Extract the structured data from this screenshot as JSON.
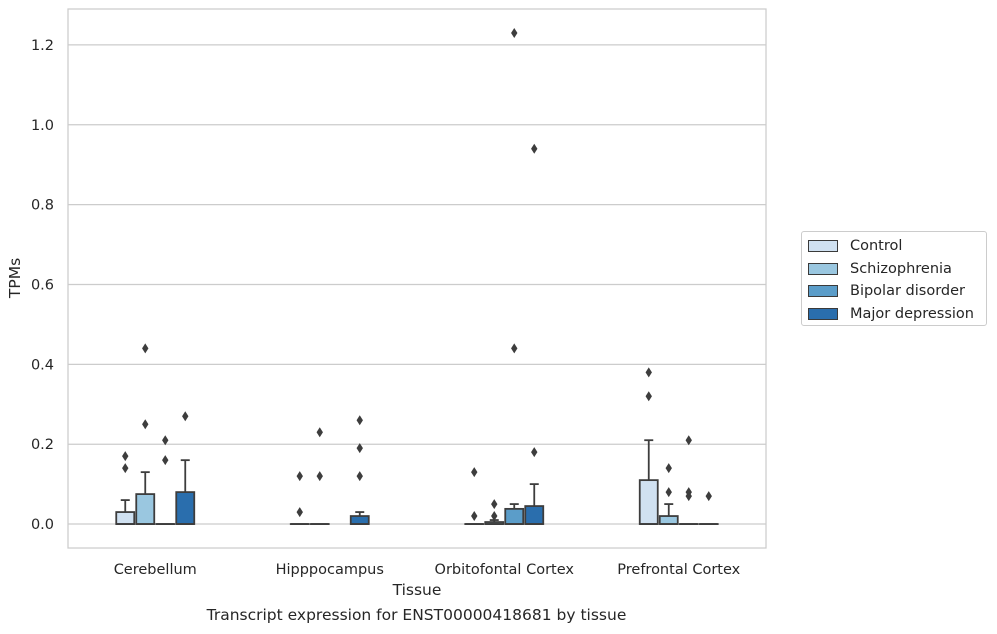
{
  "chart_data": {
    "type": "box",
    "xlabel": "Tissue",
    "ylabel": "TPMs",
    "caption": "Transcript expression for ENST00000418681 by tissue",
    "ylim": [
      -0.06,
      1.29
    ],
    "yticks": [
      0.0,
      0.2,
      0.4,
      0.6,
      0.8,
      1.0,
      1.2
    ],
    "ytick_labels": [
      "0.0",
      "0.2",
      "0.4",
      "0.6",
      "0.8",
      "1.0",
      "1.2"
    ],
    "grid": true,
    "legend_position": "right",
    "categories": [
      "Cerebellum",
      "Hipppocampus",
      "Orbitofontal Cortex",
      "Prefrontal Cortex"
    ],
    "series": [
      {
        "name": "Control",
        "color": "#d0e1f1",
        "boxes": [
          {
            "q1": 0.0,
            "median": 0.0,
            "q3": 0.03,
            "whisker_low": 0.0,
            "whisker_high": 0.06,
            "outliers": [
              0.14,
              0.17
            ]
          },
          {
            "q1": 0.0,
            "median": 0.0,
            "q3": 0.0,
            "whisker_low": 0.0,
            "whisker_high": 0.0,
            "outliers": [
              0.03,
              0.12
            ]
          },
          {
            "q1": 0.0,
            "median": 0.0,
            "q3": 0.0,
            "whisker_low": 0.0,
            "whisker_high": 0.0,
            "outliers": [
              0.02,
              0.13
            ]
          },
          {
            "q1": 0.0,
            "median": 0.0,
            "q3": 0.11,
            "whisker_low": 0.0,
            "whisker_high": 0.21,
            "outliers": [
              0.32,
              0.38
            ]
          }
        ]
      },
      {
        "name": "Schizophrenia",
        "color": "#9ac7e0",
        "boxes": [
          {
            "q1": 0.0,
            "median": 0.0,
            "q3": 0.075,
            "whisker_low": 0.0,
            "whisker_high": 0.13,
            "outliers": [
              0.25,
              0.44
            ]
          },
          {
            "q1": 0.0,
            "median": 0.0,
            "q3": 0.0,
            "whisker_low": 0.0,
            "whisker_high": 0.0,
            "outliers": [
              0.12,
              0.23
            ]
          },
          {
            "q1": 0.0,
            "median": 0.0,
            "q3": 0.005,
            "whisker_low": 0.0,
            "whisker_high": 0.01,
            "outliers": [
              0.02,
              0.05
            ]
          },
          {
            "q1": 0.0,
            "median": 0.0,
            "q3": 0.02,
            "whisker_low": 0.0,
            "whisker_high": 0.05,
            "outliers": [
              0.08,
              0.14
            ]
          }
        ]
      },
      {
        "name": "Bipolar disorder",
        "color": "#5b9dc9",
        "boxes": [
          {
            "q1": 0.0,
            "median": 0.0,
            "q3": 0.0,
            "whisker_low": 0.0,
            "whisker_high": 0.0,
            "outliers": [
              0.16,
              0.21
            ]
          },
          null,
          {
            "q1": 0.0,
            "median": 0.0,
            "q3": 0.038,
            "whisker_low": 0.0,
            "whisker_high": 0.05,
            "outliers": [
              0.44,
              1.23
            ]
          },
          {
            "q1": 0.0,
            "median": 0.0,
            "q3": 0.0,
            "whisker_low": 0.0,
            "whisker_high": 0.0,
            "outliers": [
              0.07,
              0.08,
              0.21
            ]
          }
        ]
      },
      {
        "name": "Major depression",
        "color": "#2a6ead",
        "boxes": [
          {
            "q1": 0.0,
            "median": 0.0,
            "q3": 0.08,
            "whisker_low": 0.0,
            "whisker_high": 0.16,
            "outliers": [
              0.27
            ]
          },
          {
            "q1": 0.0,
            "median": 0.0,
            "q3": 0.02,
            "whisker_low": 0.0,
            "whisker_high": 0.03,
            "outliers": [
              0.12,
              0.19,
              0.26
            ]
          },
          {
            "q1": 0.0,
            "median": 0.0,
            "q3": 0.045,
            "whisker_low": 0.0,
            "whisker_high": 0.1,
            "outliers": [
              0.18,
              0.94
            ]
          },
          {
            "q1": 0.0,
            "median": 0.0,
            "q3": 0.0,
            "whisker_low": 0.0,
            "whisker_high": 0.0,
            "outliers": [
              0.07
            ]
          }
        ]
      }
    ]
  }
}
